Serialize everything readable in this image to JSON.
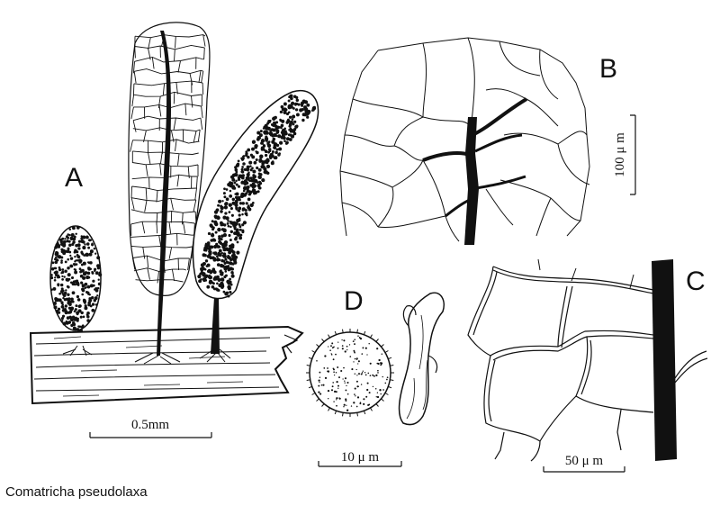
{
  "figure": {
    "panels": [
      {
        "id": "A",
        "letter": "A",
        "scale_label": "0.5mm"
      },
      {
        "id": "B",
        "letter": "B",
        "scale_label": "100 μ m"
      },
      {
        "id": "C",
        "letter": "C",
        "scale_label": "50 μ m"
      },
      {
        "id": "D",
        "letter": "D",
        "scale_label": "10 μ m"
      }
    ],
    "caption": "Comatricha pseudolaxa"
  }
}
